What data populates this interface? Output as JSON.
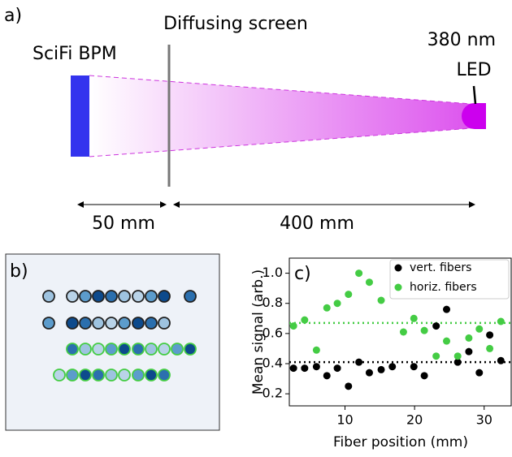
{
  "diagram": {
    "panel_label": "a)",
    "screen_label": "Diffusing screen",
    "detector_label": "SciFi BPM",
    "led_label_top": "380 nm",
    "led_label_bottom": "LED",
    "distance_1": "50 mm",
    "distance_2": "400 mm"
  },
  "image_panel": {
    "panel_label": "b)"
  },
  "chart_data": {
    "type": "scatter",
    "panel_label": "c)",
    "x_label": "Fiber position (mm)",
    "y_label": "Mean signal (arb.)",
    "xlim": [
      2,
      34
    ],
    "ylim": [
      0.12,
      1.1
    ],
    "xticks": [
      10,
      20,
      30
    ],
    "yticks": [
      0.2,
      0.4,
      0.6,
      0.8,
      {
        "value": 1.0,
        "label": "1.0"
      }
    ],
    "legend": "upper right",
    "series": [
      {
        "name": "vert. fibers",
        "color": "#000000",
        "x": [
          2.6,
          4.2,
          5.9,
          7.4,
          8.9,
          10.5,
          12.0,
          13.5,
          15.2,
          16.8,
          19.9,
          21.4,
          23.1,
          24.6,
          26.2,
          27.8,
          29.3,
          30.8,
          32.4
        ],
        "values": [
          0.37,
          0.37,
          0.38,
          0.32,
          0.37,
          0.25,
          0.41,
          0.34,
          0.36,
          0.38,
          0.38,
          0.32,
          0.65,
          0.76,
          0.41,
          0.48,
          0.34,
          0.59,
          0.42
        ]
      },
      {
        "name": "horiz. fibers",
        "color": "#44cc44",
        "x": [
          2.6,
          4.2,
          5.9,
          7.4,
          8.9,
          10.5,
          12.0,
          13.5,
          15.2,
          18.4,
          19.9,
          21.4,
          23.1,
          24.6,
          26.2,
          27.8,
          29.3,
          30.8,
          32.4
        ],
        "values": [
          0.65,
          0.69,
          0.49,
          0.77,
          0.8,
          0.86,
          1.0,
          0.94,
          0.82,
          0.61,
          0.7,
          0.62,
          0.45,
          0.55,
          0.45,
          0.57,
          0.63,
          0.5,
          0.68
        ]
      }
    ],
    "hlines": [
      {
        "value": 0.67,
        "color": "#44cc44"
      },
      {
        "value": 0.41,
        "color": "#000000"
      }
    ]
  }
}
